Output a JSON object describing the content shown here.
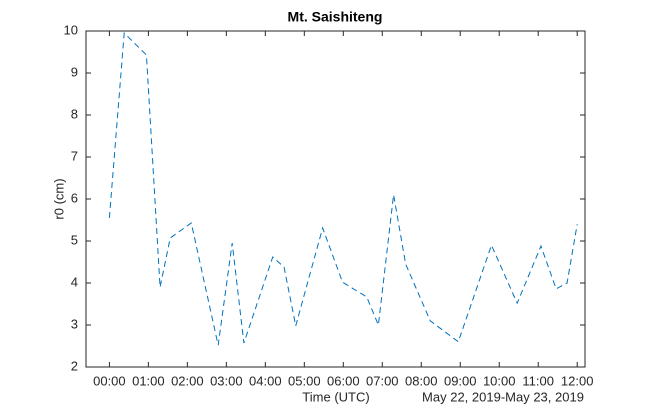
{
  "chart_data": {
    "type": "line",
    "title": "Mt. Saishiteng",
    "x_label": "Time (UTC)",
    "y_label": "r0 (cm)",
    "annotation": "May 22, 2019-May 23, 2019",
    "x": [
      0.0,
      0.38,
      0.95,
      1.3,
      1.56,
      2.1,
      2.79,
      3.15,
      3.45,
      4.19,
      4.48,
      4.78,
      5.47,
      5.98,
      6.6,
      6.9,
      7.29,
      7.6,
      8.23,
      8.95,
      9.8,
      10.46,
      11.07,
      11.46,
      11.74,
      12.0
    ],
    "series": [
      {
        "color": "#0072bd",
        "values": [
          5.55,
          9.95,
          9.43,
          3.9,
          5.07,
          5.43,
          2.52,
          4.95,
          2.57,
          4.62,
          4.38,
          2.98,
          5.31,
          4.02,
          3.67,
          3.0,
          6.1,
          4.45,
          3.1,
          2.6,
          4.9,
          3.52,
          4.88,
          3.86,
          4.0,
          5.4
        ]
      }
    ],
    "xlim": [
      -0.6,
      12.2
    ],
    "ylim": [
      2,
      10
    ],
    "xticks": [
      {
        "value": 0,
        "label": "00:00"
      },
      {
        "value": 1,
        "label": "01:00"
      },
      {
        "value": 2,
        "label": "02:00"
      },
      {
        "value": 3,
        "label": "03:00"
      },
      {
        "value": 4,
        "label": "04:00"
      },
      {
        "value": 5,
        "label": "05:00"
      },
      {
        "value": 6,
        "label": "06:00"
      },
      {
        "value": 7,
        "label": "07:00"
      },
      {
        "value": 8,
        "label": "08:00"
      },
      {
        "value": 9,
        "label": "09:00"
      },
      {
        "value": 10,
        "label": "10:00"
      },
      {
        "value": 11,
        "label": "11:00"
      },
      {
        "value": 12,
        "label": "12:00"
      }
    ],
    "yticks": [
      2,
      3,
      4,
      5,
      6,
      7,
      8,
      9,
      10
    ],
    "line_style": "dashed"
  }
}
